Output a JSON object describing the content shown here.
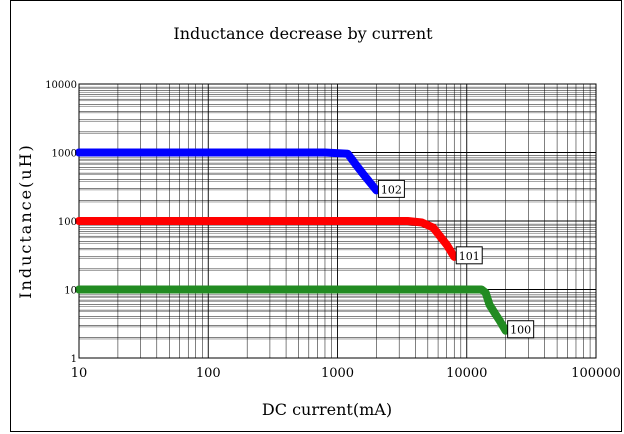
{
  "chart_data": {
    "type": "line",
    "title": "Inductance decrease by current",
    "xlabel": "DC current(mA)",
    "ylabel": "Inductance(uH)",
    "x_scale": "log",
    "y_scale": "log",
    "xlim": [
      10,
      100000
    ],
    "ylim": [
      1,
      10000
    ],
    "x_ticks": [
      "10",
      "100",
      "1000",
      "10000",
      "100000"
    ],
    "y_ticks": [
      "1",
      "10",
      "100",
      "1000",
      "10000"
    ],
    "grid": true,
    "series": [
      {
        "name": "102",
        "color": "#0000ff",
        "points": [
          [
            10,
            1000
          ],
          [
            200,
            1000
          ],
          [
            800,
            1000
          ],
          [
            1200,
            960
          ],
          [
            1400,
            650
          ],
          [
            1600,
            470
          ],
          [
            2000,
            280
          ]
        ]
      },
      {
        "name": "101",
        "color": "#ff0000",
        "points": [
          [
            10,
            100
          ],
          [
            500,
            100
          ],
          [
            3500,
            100
          ],
          [
            4500,
            95
          ],
          [
            5500,
            80
          ],
          [
            7000,
            45
          ],
          [
            8000,
            30
          ]
        ]
      },
      {
        "name": "100",
        "color": "#228b22",
        "points": [
          [
            10,
            10
          ],
          [
            1000,
            10
          ],
          [
            13000,
            10
          ],
          [
            14000,
            9
          ],
          [
            15000,
            6
          ],
          [
            16500,
            4.5
          ],
          [
            18000,
            3.5
          ],
          [
            20000,
            2.5
          ]
        ]
      }
    ]
  }
}
